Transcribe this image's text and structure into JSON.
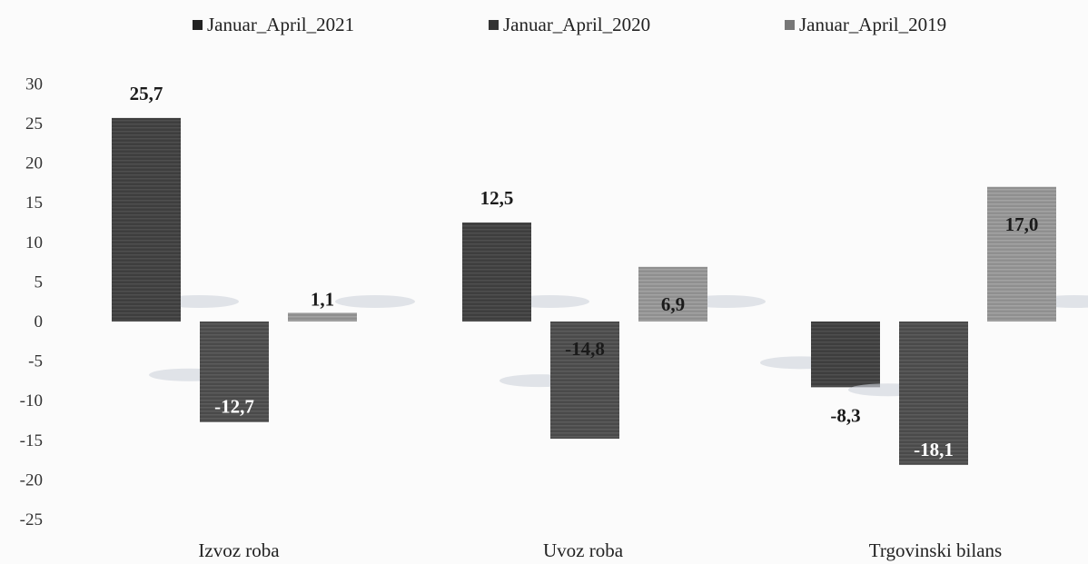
{
  "chart_data": {
    "type": "bar",
    "categories": [
      "Izvoz roba",
      "Uvoz roba",
      "Trgovinski bilans"
    ],
    "series": [
      {
        "name": "Januar_April_2021",
        "values": [
          25.7,
          12.5,
          -8.3
        ],
        "labels": [
          "25,7",
          "12,5",
          "-8,3"
        ],
        "color": "#4a4a4a"
      },
      {
        "name": "Januar_April_2020",
        "values": [
          -12.7,
          -14.8,
          -18.1
        ],
        "labels": [
          "-12,7",
          "-14,8",
          "-18,1"
        ],
        "color": "#555555"
      },
      {
        "name": "Januar_April_2019",
        "values": [
          1.1,
          6.9,
          17.0
        ],
        "labels": [
          "1,1",
          "6,9",
          "17,0"
        ],
        "color": "#9a9a9a"
      }
    ],
    "y_ticks": [
      "30",
      "25",
      "20",
      "15",
      "10",
      "5",
      "0",
      "-5",
      "-10",
      "-15",
      "-20",
      "-25"
    ],
    "ylim": [
      -25,
      30
    ],
    "grid": false,
    "legend": "top-center"
  }
}
